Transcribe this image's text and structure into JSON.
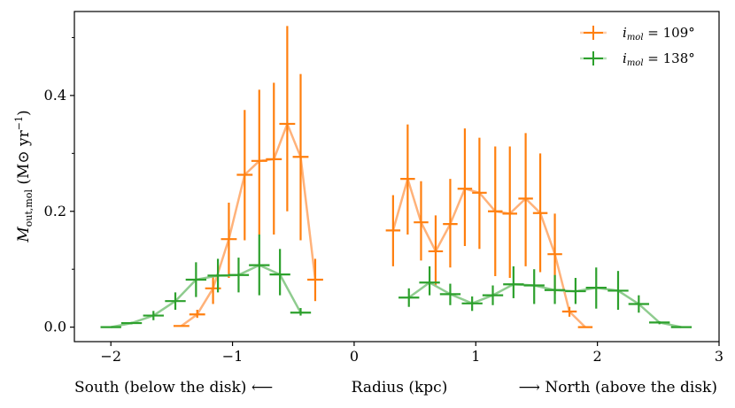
{
  "chart_data": {
    "type": "line",
    "title": "",
    "xlabel_left": "South (below the disk) ⟵",
    "xlabel_center": "Radius (kpc)",
    "xlabel_right": "⟶ North (above the disk)",
    "ylabel": "M_out,mol (M⊙ yr⁻¹)",
    "ylabel_main": "M",
    "ylabel_sub": "out,mol",
    "ylabel_units": "(M⊙ yr",
    "ylabel_units_sup": "−1",
    "ylabel_units_close": ")",
    "xlim": [
      -2.3,
      3.0
    ],
    "ylim": [
      -0.025,
      0.545
    ],
    "xticks": [
      -2,
      -1,
      0,
      1,
      2,
      3
    ],
    "xtick_labels": [
      "−2",
      "−1",
      "0",
      "1",
      "2",
      "3"
    ],
    "yticks": [
      0.0,
      0.2,
      0.4
    ],
    "ytick_labels": [
      "0.0",
      "0.2",
      "0.4"
    ],
    "minor_yticks": [
      0.1,
      0.3,
      0.5
    ],
    "legend_position": "top-right",
    "series": [
      {
        "name": "i_mol = 109°",
        "legend_main": "i",
        "legend_sub": "mol",
        "legend_value": " = 109°",
        "color": "#ff7f0e",
        "line_color": "#ffb27a",
        "segments": [
          {
            "x": [
              -1.42,
              -1.29,
              -1.16,
              -1.03,
              -0.9,
              -0.78,
              -0.66,
              -0.55,
              -0.44,
              -0.32
            ],
            "y": [
              0.002,
              0.022,
              0.067,
              0.152,
              0.263,
              0.287,
              0.29,
              0.351,
              0.294,
              0.082
            ],
            "ylow": [
              0.002,
              0.016,
              0.04,
              0.085,
              0.15,
              0.16,
              0.16,
              0.2,
              0.15,
              0.045
            ],
            "yhigh": [
              0.002,
              0.03,
              0.09,
              0.215,
              0.375,
              0.41,
              0.422,
              0.52,
              0.437,
              0.118
            ]
          },
          {
            "x": [
              0.32,
              0.44,
              0.55,
              0.67,
              0.79,
              0.91,
              1.03,
              1.16,
              1.28,
              1.41,
              1.53,
              1.65,
              1.77,
              1.9
            ],
            "y": [
              0.167,
              0.256,
              0.181,
              0.131,
              0.178,
              0.239,
              0.232,
              0.2,
              0.196,
              0.222,
              0.197,
              0.126,
              0.027,
              0.0
            ],
            "ylow": [
              0.105,
              0.16,
              0.115,
              0.072,
              0.103,
              0.14,
              0.135,
              0.088,
              0.085,
              0.105,
              0.095,
              0.057,
              0.018,
              0.0
            ],
            "yhigh": [
              0.228,
              0.35,
              0.252,
              0.193,
              0.256,
              0.343,
              0.327,
              0.312,
              0.312,
              0.335,
              0.3,
              0.196,
              0.035,
              0.0
            ]
          }
        ]
      },
      {
        "name": "i_mol = 138°",
        "legend_main": "i",
        "legend_sub": "mol",
        "legend_value": " = 138°",
        "color": "#2ca02c",
        "line_color": "#8fcc8f",
        "segments": [
          {
            "x": [
              -2.0,
              -1.83,
              -1.65,
              -1.47,
              -1.3,
              -1.12,
              -0.95,
              -0.78,
              -0.61,
              -0.44
            ],
            "y": [
              0.0,
              0.007,
              0.02,
              0.045,
              0.082,
              0.089,
              0.09,
              0.107,
              0.091,
              0.025
            ],
            "ylow": [
              0.0,
              0.005,
              0.012,
              0.03,
              0.052,
              0.06,
              0.06,
              0.055,
              0.055,
              0.02
            ],
            "yhigh": [
              0.0,
              0.009,
              0.028,
              0.06,
              0.112,
              0.118,
              0.12,
              0.16,
              0.135,
              0.033
            ]
          },
          {
            "x": [
              0.45,
              0.62,
              0.79,
              0.97,
              1.14,
              1.31,
              1.48,
              1.65,
              1.82,
              1.99,
              2.17,
              2.34,
              2.51,
              2.69
            ],
            "y": [
              0.051,
              0.077,
              0.057,
              0.041,
              0.055,
              0.074,
              0.072,
              0.064,
              0.062,
              0.068,
              0.063,
              0.04,
              0.008,
              0.0
            ],
            "ylow": [
              0.035,
              0.055,
              0.038,
              0.028,
              0.038,
              0.05,
              0.04,
              0.04,
              0.04,
              0.032,
              0.03,
              0.025,
              0.005,
              0.0
            ],
            "yhigh": [
              0.067,
              0.105,
              0.075,
              0.053,
              0.072,
              0.105,
              0.1,
              0.09,
              0.085,
              0.103,
              0.097,
              0.055,
              0.01,
              0.0
            ]
          }
        ]
      }
    ]
  }
}
